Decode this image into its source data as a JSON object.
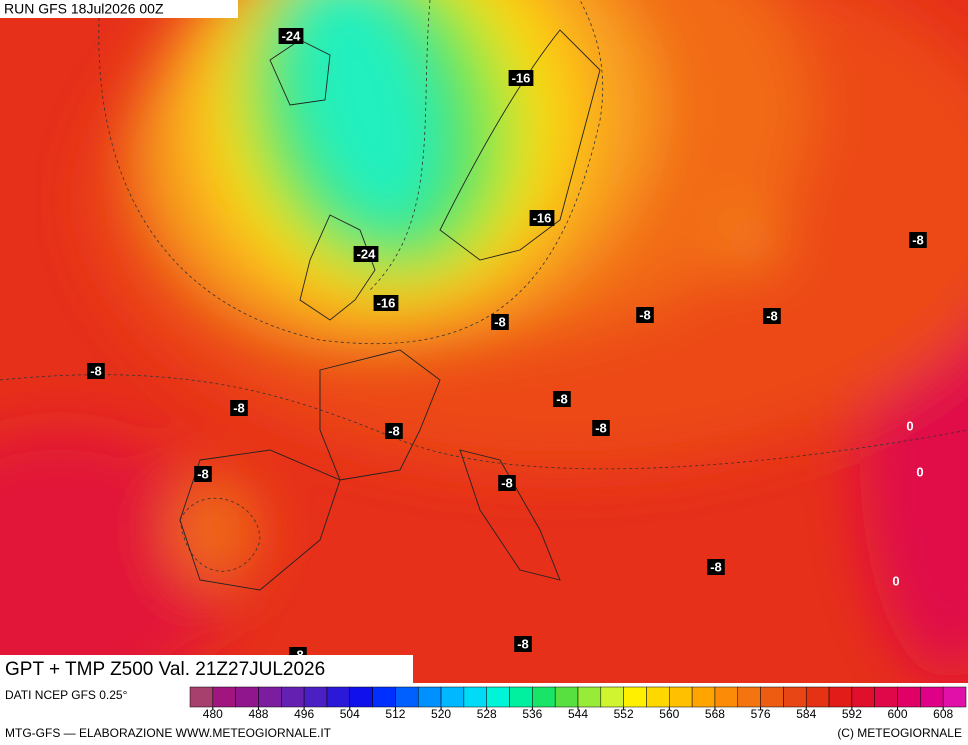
{
  "header": {
    "run": "RUN GFS 18Jul2026 00Z"
  },
  "map": {
    "title": "GPT + TMP Z500 Val. 21Z27JUL2026",
    "contour_labels": [
      "-24",
      "-16",
      "-16",
      "-8",
      "-24",
      "-16",
      "-8",
      "-8",
      "-8",
      "-8",
      "-8",
      "-8",
      "-8",
      "-8",
      "0",
      "0",
      "-8",
      "-8",
      "-8",
      "0",
      "-8",
      "-8"
    ]
  },
  "colorbar": {
    "source": "DATI NCEP GFS 0.25°",
    "ticks": [
      480,
      488,
      496,
      504,
      512,
      520,
      528,
      536,
      544,
      552,
      560,
      568,
      576,
      584,
      592,
      600,
      608
    ],
    "colors": [
      "#a8406e",
      "#a0167e",
      "#90168e",
      "#7c1c9e",
      "#6420b0",
      "#4a20c4",
      "#2c18d8",
      "#1010ec",
      "#0030ff",
      "#0060ff",
      "#0090ff",
      "#00b8ff",
      "#00dcf8",
      "#00f4d8",
      "#00f0a0",
      "#18e468",
      "#58e040",
      "#98ec38",
      "#d0f430",
      "#fff000",
      "#ffd800",
      "#ffc000",
      "#ffa400",
      "#fc8c08",
      "#f47410",
      "#ee5c12",
      "#e84614",
      "#e63214",
      "#e21c18",
      "#e0102c",
      "#e00848",
      "#e00066",
      "#e00088",
      "#e010a8"
    ]
  },
  "footer": {
    "credit_left": "MTG-GFS — ELABORAZIONE WWW.METEOGIORNALE.IT",
    "credit_right": "(C) METEOGIORNALE"
  }
}
